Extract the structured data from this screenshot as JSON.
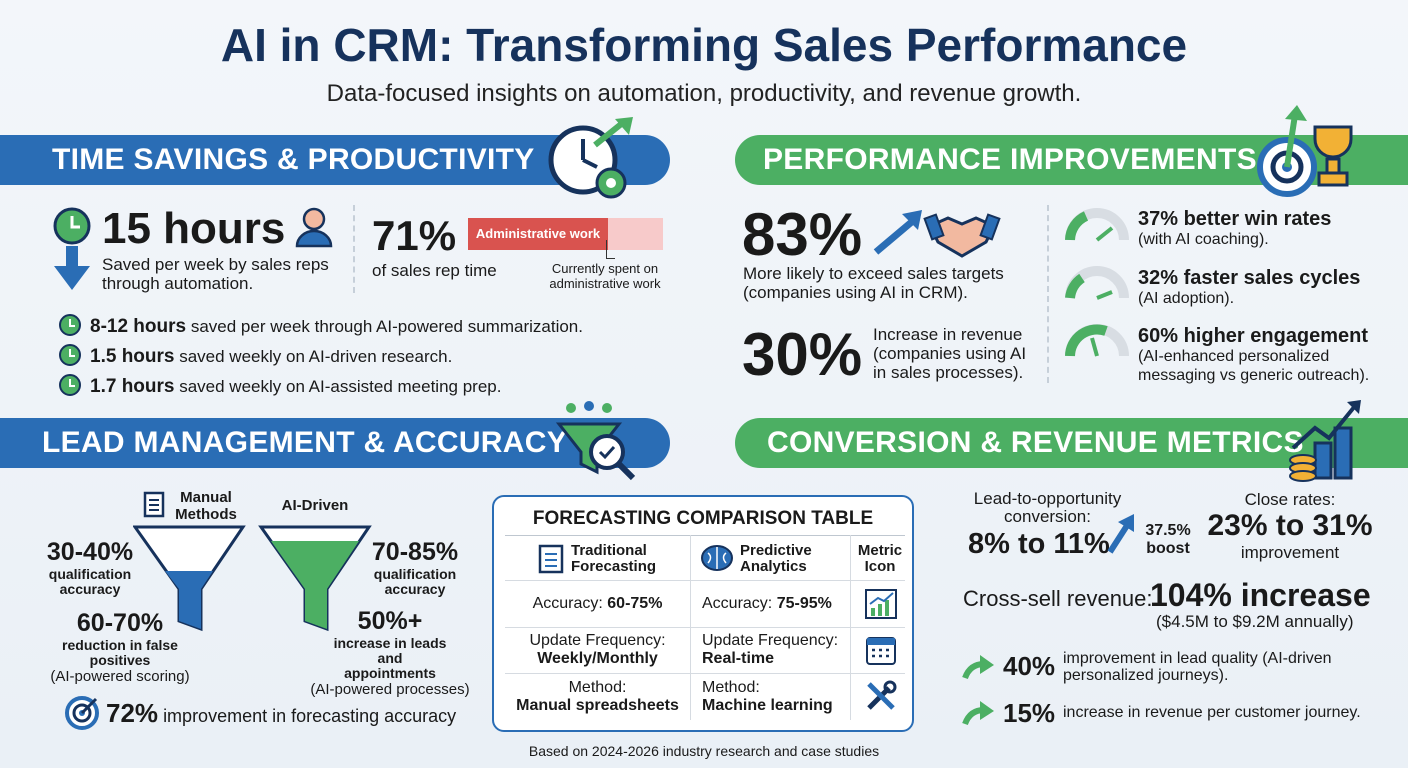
{
  "header": {
    "title": "AI in CRM: Transforming Sales Performance",
    "subtitle": "Data-focused insights on automation, productivity, and revenue growth."
  },
  "time_savings": {
    "heading": "TIME SAVINGS & PRODUCTIVITY",
    "hours_value": "15 hours",
    "hours_text": "Saved per week by sales reps through automation.",
    "percent_value": "71%",
    "percent_text": "of sales rep time",
    "bar_label": "Administrative work",
    "bar_note": "Currently spent on administrative work",
    "items": [
      {
        "value": "8-12 hours",
        "text": "saved per week through AI-powered summarization."
      },
      {
        "value": "1.5 hours",
        "text": "saved weekly on AI-driven research."
      },
      {
        "value": "1.7 hours",
        "text": "saved weekly on AI-assisted meeting prep."
      }
    ]
  },
  "performance": {
    "heading": "PERFORMANCE IMPROVEMENTS",
    "targets_value": "83%",
    "targets_text": "More likely to exceed sales targets (companies using AI in CRM).",
    "revenue_value": "30%",
    "revenue_text": "Increase in revenue (companies using AI in sales processes).",
    "gauges": [
      {
        "title": "37% better win rates",
        "text": "(with AI coaching)."
      },
      {
        "title": "32% faster sales cycles",
        "text": "(AI adoption)."
      },
      {
        "title": "60% higher engagement",
        "text": "(AI-enhanced personalized messaging vs generic outreach)."
      }
    ]
  },
  "lead_management": {
    "heading": "LEAD MANAGEMENT & ACCURACY",
    "manual_label": "Manual Methods",
    "ai_label": "AI-Driven",
    "manual_accuracy_value": "30-40%",
    "manual_accuracy_text": "qualification accuracy",
    "false_positive_value": "60-70%",
    "false_positive_text": "reduction in false positives",
    "false_positive_note": "(AI-powered scoring)",
    "ai_accuracy_value": "70-85%",
    "ai_accuracy_text": "qualification accuracy",
    "leads_value": "50%+",
    "leads_text": "increase in leads and appointments",
    "leads_note": "(AI-powered processes)",
    "forecast_value": "72%",
    "forecast_text": "improvement in forecasting accuracy"
  },
  "table": {
    "title": "FORECASTING COMPARISON TABLE",
    "columns": [
      "Traditional Forecasting",
      "Predictive Analytics",
      "Metric Icon"
    ],
    "rows": [
      [
        {
          "label": "Accuracy:",
          "value": "60-75%"
        },
        {
          "label": "Accuracy:",
          "value": "75-95%"
        }
      ],
      [
        {
          "label": "Update Frequency:",
          "value": "Weekly/Monthly"
        },
        {
          "label": "Update Frequency:",
          "value": "Real-time"
        }
      ],
      [
        {
          "label": "Method:",
          "value": "Manual spreadsheets"
        },
        {
          "label": "Method:",
          "value": "Machine learning"
        }
      ]
    ]
  },
  "conversion": {
    "heading": "CONVERSION & REVENUE METRICS",
    "lead_label": "Lead-to-opportunity conversion:",
    "lead_value": "8% to 11%",
    "lead_boost": "37.5% boost",
    "close_label": "Close rates:",
    "close_value": "23% to 31%",
    "close_text": "improvement",
    "cross_label": "Cross-sell revenue:",
    "cross_value": "104% increase",
    "cross_note": "($4.5M to $9.2M annually)",
    "items": [
      {
        "value": "40%",
        "text": "improvement in lead quality (AI-driven personalized journeys)."
      },
      {
        "value": "15%",
        "text": "increase in revenue per customer journey."
      }
    ]
  },
  "footer": "Based on 2024-2026 industry research and case studies"
}
